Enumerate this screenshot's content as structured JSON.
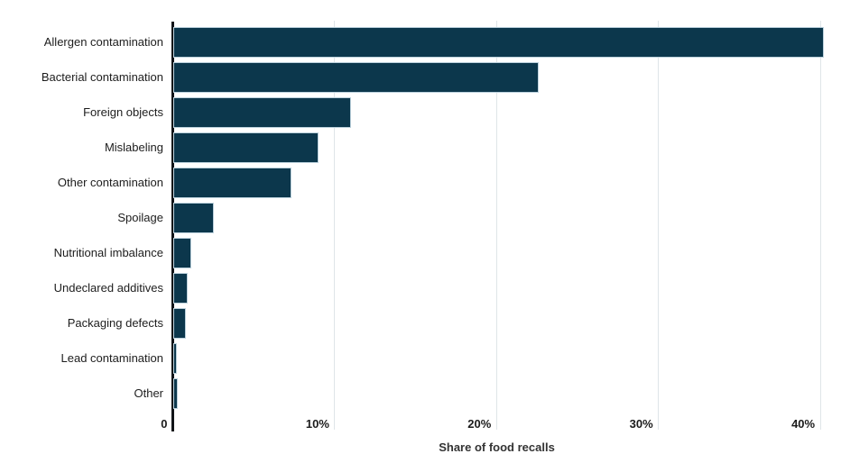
{
  "page": {
    "background_color": "#ffffff"
  },
  "chart_data": {
    "type": "bar",
    "orientation": "horizontal",
    "title": "",
    "xlabel": "Share of food recalls",
    "ylabel": "",
    "categories": [
      "Allergen contamination",
      "Bacterial contamination",
      "Foreign objects",
      "Mislabeling",
      "Other contamination",
      "Spoilage",
      "Nutritional imbalance",
      "Undeclared additives",
      "Packaging defects",
      "Lead contamination",
      "Other"
    ],
    "values": [
      40.2,
      22.6,
      11.0,
      9.0,
      7.3,
      2.5,
      1.1,
      0.9,
      0.8,
      0.2,
      0.3
    ],
    "unit": "%",
    "xlim": [
      0,
      40
    ],
    "xticks": [
      {
        "value": 0,
        "label": "0"
      },
      {
        "value": 10,
        "label": "10%"
      },
      {
        "value": 20,
        "label": "20%"
      },
      {
        "value": 30,
        "label": "30%"
      },
      {
        "value": 40,
        "label": "40%"
      }
    ],
    "grid": true,
    "legend": false,
    "colors": {
      "bar_fill": "#0c374c",
      "bar_border": "#bdd2dd",
      "gridline": "#dfe5e8",
      "axis_line": "#111418",
      "tick_text": "#1b1b1b",
      "label_text": "#1d1d1d",
      "axis_title_text": "#333333"
    }
  }
}
